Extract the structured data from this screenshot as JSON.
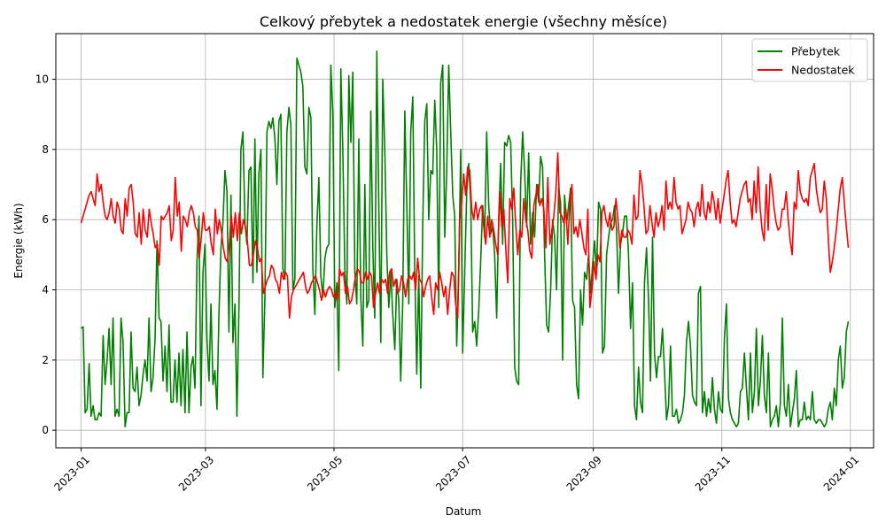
{
  "chart_data": {
    "type": "line",
    "title": "Celkový přebytek a nedostatek energie (všechny měsíce)",
    "xlabel": "Datum",
    "ylabel": "Energie (kWh)",
    "xlim": [
      "2022-12-20",
      "2024-01-12"
    ],
    "ylim": [
      -0.5,
      11.3
    ],
    "grid": true,
    "legend": "top-right",
    "x_ticks": [
      "2023-01",
      "2023-03",
      "2023-05",
      "2023-07",
      "2023-09",
      "2023-11",
      "2024-01"
    ],
    "y_ticks": [
      0,
      2,
      4,
      6,
      8,
      10
    ],
    "x_start": "2023-01-01",
    "series": [
      {
        "name": "Přebytek",
        "color": "#008000",
        "values": [
          2.9,
          2.95,
          0.5,
          0.6,
          1.9,
          0.4,
          0.7,
          0.3,
          0.3,
          0.5,
          0.4,
          2.7,
          1.3,
          2.0,
          2.9,
          1.3,
          3.2,
          0.4,
          0.6,
          0.4,
          3.2,
          2.5,
          0.1,
          0.5,
          0.5,
          2.8,
          1.2,
          1.1,
          1.8,
          0.7,
          1.0,
          1.6,
          2.0,
          1.4,
          3.2,
          1.1,
          1.5,
          2.6,
          5.4,
          3.2,
          3.1,
          1.4,
          2.4,
          1.1,
          3.0,
          0.8,
          0.8,
          2.0,
          0.8,
          2.2,
          0.7,
          2.3,
          0.5,
          2.8,
          0.5,
          1.8,
          2.1,
          1.2,
          4.8,
          6.1,
          0.7,
          4.5,
          5.3,
          2.6,
          1.4,
          3.6,
          1.3,
          1.7,
          0.6,
          3.3,
          5.2,
          5.9,
          7.4,
          6.8,
          2.8,
          6.7,
          2.5,
          3.6,
          0.4,
          3.5,
          8.0,
          8.5,
          5.9,
          5.3,
          7.4,
          7.5,
          4.2,
          8.3,
          4.5,
          7.3,
          8.0,
          1.5,
          3.8,
          8.5,
          8.8,
          8.6,
          8.9,
          8.3,
          7.0,
          8.8,
          9.0,
          4.6,
          4.3,
          8.5,
          9.2,
          8.7,
          4.0,
          4.3,
          10.6,
          10.4,
          10.2,
          9.8,
          7.5,
          7.3,
          9.2,
          8.9,
          4.6,
          3.3,
          5.8,
          7.2,
          4.4,
          3.8,
          4.9,
          5.2,
          5.3,
          10.4,
          9.0,
          3.5,
          4.2,
          1.7,
          10.3,
          8.0,
          4.6,
          3.6,
          10.1,
          8.2,
          10.2,
          4.5,
          3.6,
          8.3,
          3.8,
          2.4,
          7.0,
          3.5,
          3.7,
          9.1,
          5.2,
          3.2,
          10.8,
          6.5,
          2.5,
          10.0,
          8.0,
          5.0,
          3.5,
          4.5,
          3.3,
          2.3,
          4.3,
          3.7,
          1.4,
          3.7,
          9.1,
          6.5,
          3.6,
          8.5,
          9.5,
          4.6,
          1.6,
          4.4,
          1.2,
          5.8,
          8.8,
          9.3,
          6.0,
          7.4,
          7.3,
          9.4,
          8.0,
          3.5,
          9.9,
          10.4,
          5.5,
          7.4,
          10.4,
          8.5,
          6.7,
          6.1,
          2.4,
          4.4,
          8.0,
          2.2,
          4.5,
          6.8,
          7.6,
          6.5,
          2.8,
          3.1,
          2.4,
          3.4,
          4.8,
          6.4,
          5.5,
          8.5,
          6.4,
          5.6,
          5.8,
          5.0,
          3.2,
          6.0,
          7.6,
          5.3,
          8.2,
          8.1,
          8.4,
          8.2,
          6.0,
          1.8,
          1.4,
          1.3,
          7.0,
          8.5,
          7.4,
          5.8,
          7.9,
          5.3,
          6.2,
          5.5,
          7.0,
          6.5,
          7.8,
          7.5,
          5.0,
          3.0,
          2.8,
          4.0,
          6.0,
          5.5,
          4.0,
          6.9,
          6.5,
          2.0,
          6.7,
          5.9,
          6.4,
          6.9,
          3.7,
          3.5,
          1.3,
          0.9,
          4.0,
          3.0,
          4.5,
          4.3,
          5.0,
          3.9,
          4.7,
          5.4,
          4.5,
          6.5,
          6.3,
          2.2,
          2.4,
          5.0,
          5.5,
          5.9,
          6.0,
          6.4,
          5.7,
          3.9,
          5.3,
          5.6,
          6.1,
          6.1,
          5.0,
          2.9,
          4.2,
          0.7,
          0.3,
          1.8,
          0.8,
          0.5,
          4.2,
          5.2,
          3.7,
          1.4,
          5.5,
          2.2,
          1.5,
          2.1,
          2.1,
          2.9,
          1.7,
          0.3,
          0.7,
          2.4,
          0.4,
          0.4,
          0.6,
          0.2,
          0.3,
          0.5,
          1.0,
          2.5,
          3.1,
          2.4,
          1.0,
          0.8,
          0.7,
          3.9,
          4.1,
          0.5,
          1.1,
          0.4,
          0.9,
          0.5,
          1.5,
          0.6,
          0.2,
          1.1,
          0.6,
          0.5,
          2.6,
          3.6,
          0.9,
          0.5,
          0.3,
          0.2,
          0.1,
          0.2,
          1.1,
          1.2,
          2.2,
          1.2,
          0.3,
          2.2,
          0.5,
          1.1,
          2.9,
          0.7,
          1.4,
          2.7,
          1.0,
          0.5,
          2.2,
          0.1,
          0.3,
          0.4,
          0.7,
          0.1,
          0.8,
          3.2,
          0.7,
          0.4,
          1.3,
          0.1,
          0.5,
          0.9,
          1.7,
          0.1,
          0.3,
          0.3,
          0.8,
          0.3,
          0.4,
          0.3,
          1.1,
          0.3,
          0.2,
          0.3,
          0.3,
          0.2,
          0.1,
          0.2,
          0.6,
          0.8,
          0.3,
          1.2,
          0.7,
          2.0,
          2.4,
          1.2,
          1.5,
          2.8,
          3.1
        ]
      },
      {
        "name": "Nedostatek",
        "color": "#ff0000",
        "values": [
          5.9,
          6.1,
          6.3,
          6.5,
          6.7,
          6.8,
          6.6,
          6.4,
          7.3,
          6.8,
          7.0,
          6.5,
          6.1,
          6.0,
          6.2,
          6.6,
          6.1,
          5.9,
          6.5,
          6.3,
          5.7,
          5.6,
          6.6,
          6.1,
          6.9,
          7.0,
          6.5,
          5.6,
          5.5,
          6.2,
          5.3,
          6.3,
          5.7,
          5.5,
          6.3,
          5.9,
          5.6,
          5.2,
          5.3,
          4.7,
          6.1,
          6.0,
          6.1,
          6.2,
          6.4,
          5.4,
          5.7,
          7.2,
          6.1,
          6.5,
          5.1,
          6.1,
          6.0,
          5.8,
          6.2,
          6.4,
          6.2,
          5.8,
          5.7,
          4.9,
          5.5,
          6.2,
          5.7,
          5.7,
          5.8,
          5.3,
          5.0,
          6.3,
          5.6,
          6.0,
          5.7,
          5.2,
          4.9,
          4.8,
          5.3,
          6.1,
          5.5,
          6.2,
          5.4,
          6.2,
          5.6,
          6.0,
          5.8,
          5.4,
          4.7,
          4.7,
          5.0,
          5.4,
          5.2,
          4.8,
          4.9,
          3.9,
          4.1,
          4.3,
          4.4,
          4.7,
          4.6,
          4.3,
          4.2,
          3.9,
          4.5,
          4.3,
          4.5,
          4.4,
          3.2,
          3.8,
          4.0,
          4.1,
          4.2,
          4.3,
          4.4,
          4.5,
          4.1,
          3.9,
          4.0,
          4.2,
          4.3,
          4.4,
          4.2,
          4.0,
          3.7,
          4.0,
          3.8,
          4.0,
          4.1,
          4.0,
          3.8,
          3.9,
          3.7,
          4.6,
          4.4,
          4.5,
          3.9,
          4.1,
          3.6,
          3.7,
          4.0,
          4.4,
          4.6,
          4.5,
          4.2,
          4.2,
          4.5,
          4.3,
          4.5,
          4.4,
          3.5,
          3.9,
          4.2,
          3.9,
          4.3,
          4.2,
          4.3,
          3.9,
          4.5,
          4.6,
          4.1,
          4.3,
          3.9,
          4.0,
          4.4,
          4.2,
          3.8,
          4.3,
          4.4,
          4.3,
          4.5,
          4.0,
          4.9,
          4.3,
          4.2,
          3.8,
          4.1,
          4.3,
          4.4,
          3.8,
          3.3,
          4.2,
          4.0,
          4.5,
          4.2,
          3.8,
          4.1,
          3.3,
          4.0,
          4.5,
          4.4,
          3.6,
          3.2,
          6.0,
          6.5,
          7.3,
          6.7,
          7.5,
          7.4,
          6.3,
          6.0,
          6.5,
          6.0,
          6.3,
          6.4,
          5.8,
          5.3,
          6.1,
          5.5,
          6.0,
          5.7,
          5.3,
          5.0,
          6.8,
          5.8,
          6.3,
          5.2,
          4.2,
          6.6,
          6.3,
          6.9,
          5.8,
          5.0,
          5.7,
          5.5,
          6.6,
          6.0,
          5.7,
          5.1,
          4.9,
          6.4,
          6.7,
          7.0,
          6.4,
          6.6,
          6.3,
          5.2,
          7.2,
          5.3,
          5.7,
          6.1,
          6.8,
          7.9,
          6.2,
          6.1,
          5.9,
          6.3,
          5.3,
          6.5,
          7.0,
          5.6,
          5.8,
          5.5,
          6.0,
          5.6,
          5.2,
          5.0,
          6.3,
          3.5,
          4.0,
          4.8,
          4.3,
          5.0,
          4.8,
          6.2,
          6.4,
          6.0,
          5.8,
          6.2,
          5.7,
          5.8,
          6.6,
          6.0,
          5.2,
          5.7,
          5.5,
          5.5,
          5.7,
          5.6,
          5.3,
          6.7,
          6.0,
          6.1,
          7.4,
          7.0,
          6.4,
          5.6,
          5.7,
          6.4,
          5.9,
          5.5,
          6.2,
          5.8,
          6.0,
          6.4,
          5.7,
          7.1,
          6.3,
          6.5,
          6.3,
          7.2,
          6.5,
          6.3,
          6.4,
          5.6,
          5.8,
          6.0,
          6.5,
          6.3,
          6.2,
          5.8,
          6.3,
          6.5,
          6.1,
          7.0,
          6.2,
          6.0,
          6.5,
          6.2,
          6.8,
          6.5,
          6.0,
          6.6,
          5.9,
          6.3,
          6.7,
          7.1,
          7.4,
          6.5,
          5.9,
          6.0,
          5.8,
          6.2,
          6.6,
          6.8,
          7.0,
          7.1,
          6.5,
          6.6,
          6.0,
          7.1,
          6.2,
          7.5,
          6.3,
          5.7,
          5.4,
          7.0,
          5.7,
          7.3,
          6.9,
          6.3,
          5.9,
          5.7,
          5.8,
          6.3,
          6.3,
          6.8,
          6.0,
          5.4,
          5.0,
          6.5,
          6.3,
          7.4,
          6.8,
          6.6,
          6.5,
          6.6,
          6.4,
          7.2,
          7.4,
          7.6,
          6.9,
          6.5,
          6.2,
          6.3,
          7.1,
          6.6,
          5.5,
          4.5,
          4.8,
          5.2,
          5.7,
          6.3,
          6.9,
          7.2,
          6.5,
          5.8,
          5.2
        ]
      }
    ]
  }
}
